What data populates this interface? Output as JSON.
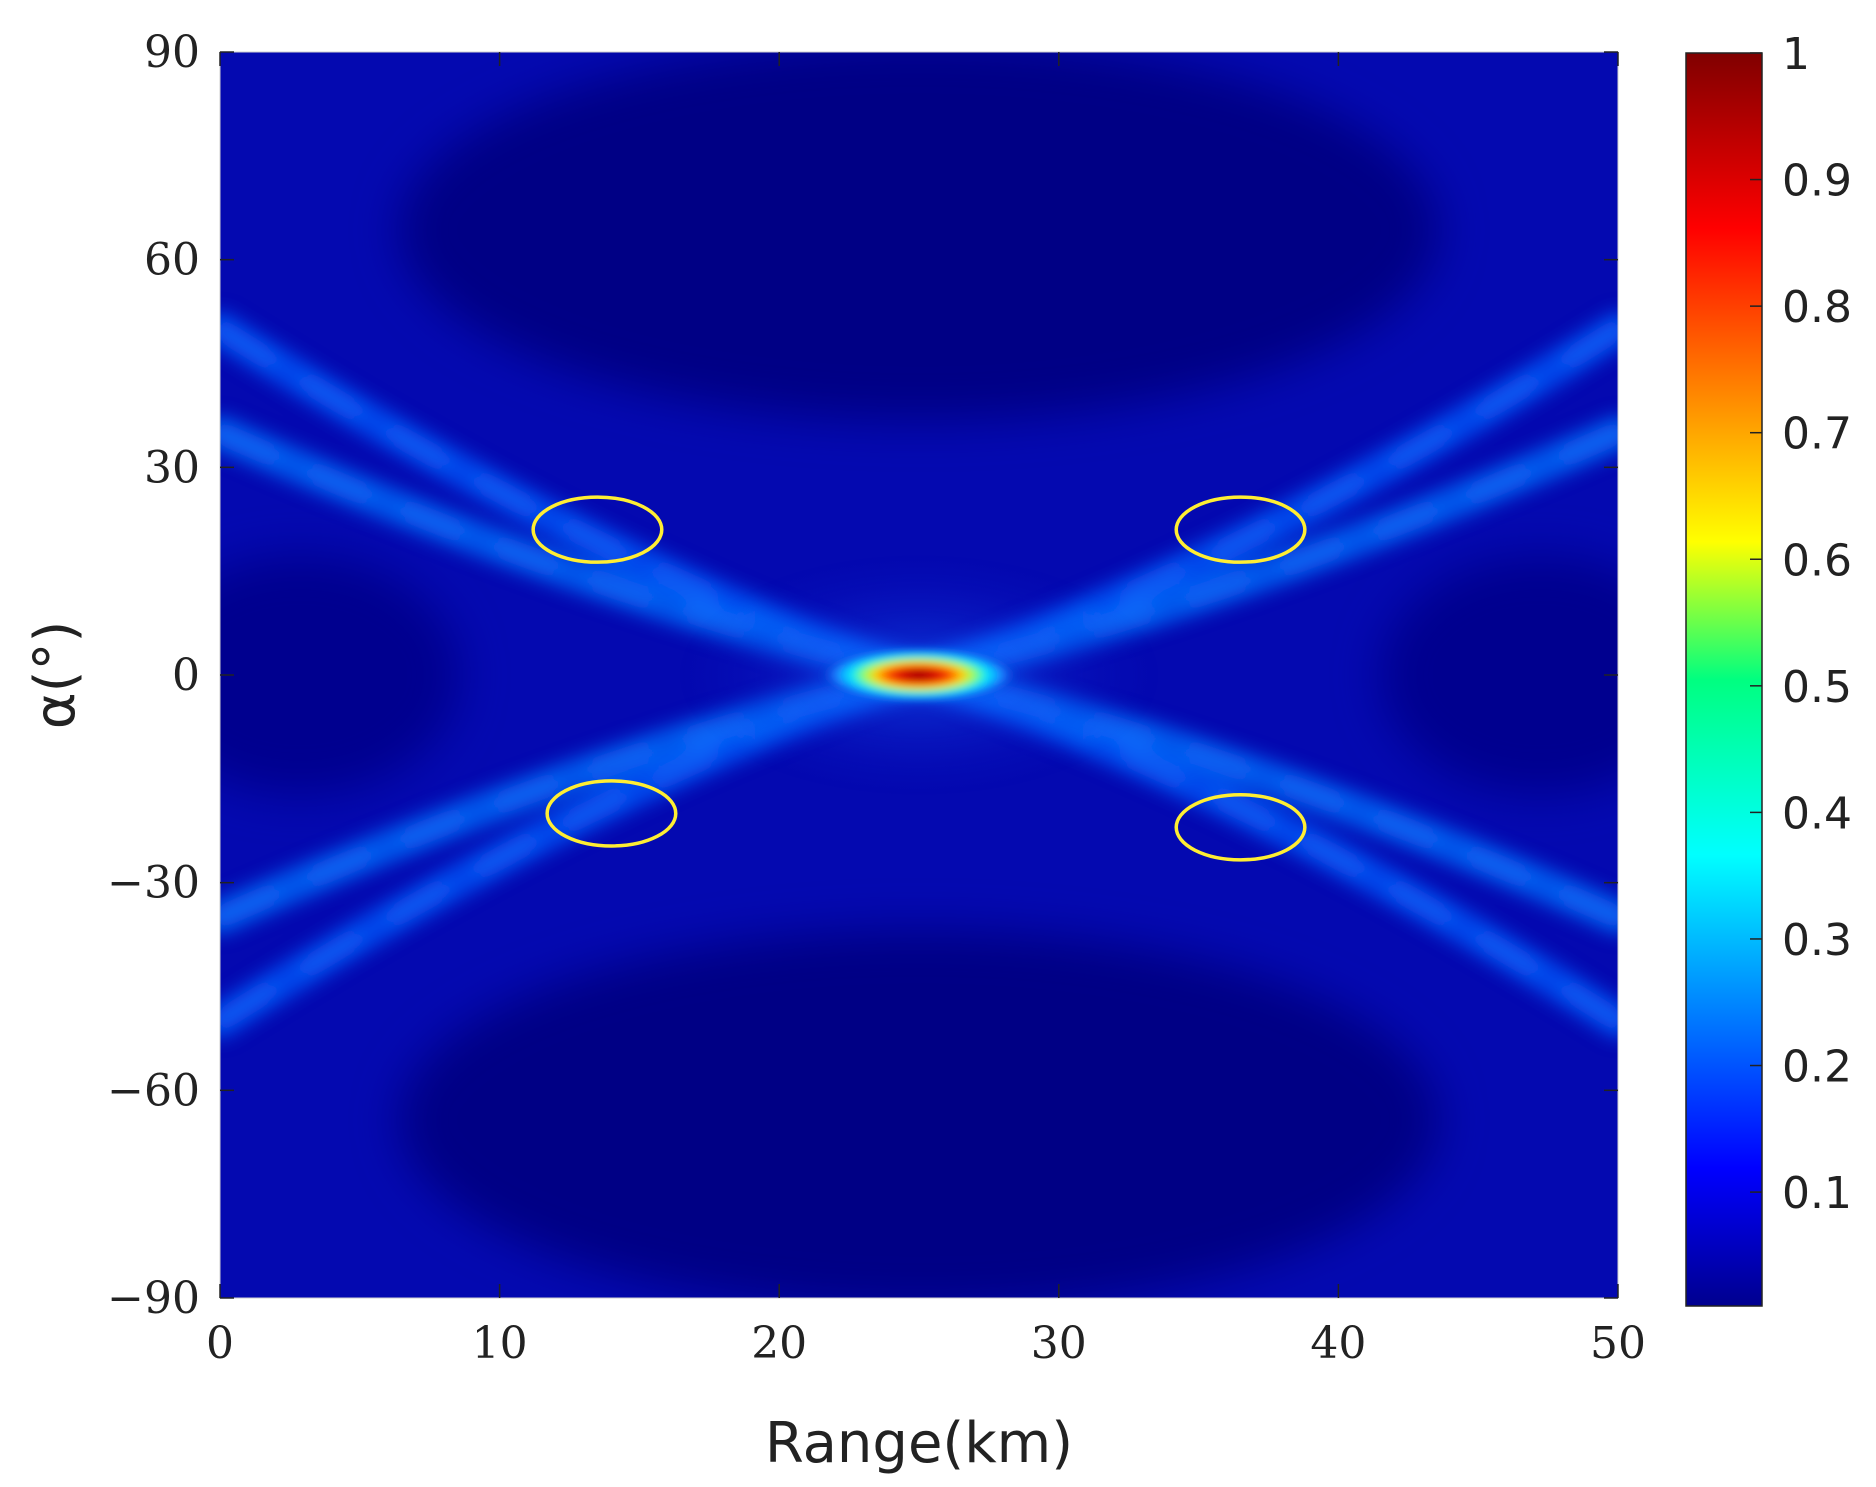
{
  "chart_data": {
    "type": "heatmap",
    "title": "",
    "xlabel": "Range(km)",
    "ylabel": "α(°)",
    "xlim": [
      0,
      50
    ],
    "ylim": [
      -90,
      90
    ],
    "xticks": [
      "0",
      "10",
      "20",
      "30",
      "40",
      "50"
    ],
    "yticks": [
      "90",
      "60",
      "30",
      "0",
      "−30",
      "−60",
      "−90"
    ],
    "colormap": "jet",
    "colorbar": {
      "range": [
        0.01,
        1
      ],
      "ticks": [
        "1",
        "0.9",
        "0.8",
        "0.7",
        "0.6",
        "0.5",
        "0.4",
        "0.3",
        "0.2",
        "0.1"
      ],
      "tick_values": [
        1,
        0.9,
        0.8,
        0.7,
        0.6,
        0.5,
        0.4,
        0.3,
        0.2,
        0.1
      ]
    },
    "main_peak": {
      "range_km": 25,
      "alpha_deg": 0,
      "value": 1.0
    },
    "sidelobe_bands": [
      {
        "from": [
          0,
          50
        ],
        "to": [
          25,
          0
        ],
        "value": 0.2
      },
      {
        "from": [
          0,
          35
        ],
        "to": [
          25,
          0
        ],
        "value": 0.22
      },
      {
        "from": [
          50,
          50
        ],
        "to": [
          25,
          0
        ],
        "value": 0.2
      },
      {
        "from": [
          50,
          35
        ],
        "to": [
          25,
          0
        ],
        "value": 0.22
      },
      {
        "from": [
          0,
          -50
        ],
        "to": [
          25,
          0
        ],
        "value": 0.2
      },
      {
        "from": [
          0,
          -35
        ],
        "to": [
          25,
          0
        ],
        "value": 0.22
      },
      {
        "from": [
          50,
          -50
        ],
        "to": [
          25,
          0
        ],
        "value": 0.2
      },
      {
        "from": [
          50,
          -35
        ],
        "to": [
          25,
          0
        ],
        "value": 0.22
      }
    ],
    "annotations": [
      {
        "shape": "ellipse",
        "color": "#ffee33",
        "center": [
          13.5,
          21
        ],
        "radii_km_deg": [
          2.3,
          4.7
        ]
      },
      {
        "shape": "ellipse",
        "color": "#ffee33",
        "center": [
          36.5,
          21
        ],
        "radii_km_deg": [
          2.3,
          4.7
        ]
      },
      {
        "shape": "ellipse",
        "color": "#ffee33",
        "center": [
          14.0,
          -20
        ],
        "radii_km_deg": [
          2.3,
          4.7
        ]
      },
      {
        "shape": "ellipse",
        "color": "#ffee33",
        "center": [
          36.5,
          -22
        ],
        "radii_km_deg": [
          2.3,
          4.7
        ]
      }
    ]
  }
}
